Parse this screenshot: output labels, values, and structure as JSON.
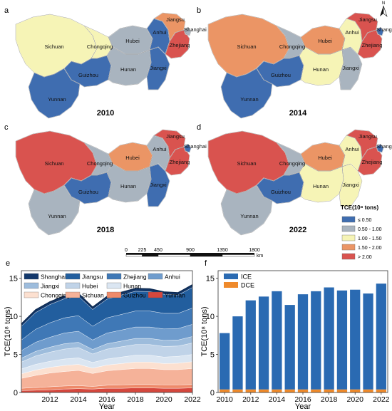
{
  "colors": {
    "lt050": "#3f6db0",
    "c050_100": "#a9b4bf",
    "c100_150": "#f6f4b6",
    "c150_200": "#eb9565",
    "gt200": "#d9534f"
  },
  "maps": [
    {
      "panel": "a",
      "year": "2010",
      "provinces": {
        "Sichuan": "c100_150",
        "Yunnan": "lt050",
        "Chongqing": "c100_150",
        "Guizhou": "lt050",
        "Hubei": "c050_100",
        "Hunan": "c050_100",
        "Jiangxi": "lt050",
        "Anhui": "lt050",
        "Jiangsu": "c150_200",
        "Zhejiang": "gt200",
        "Shanghai": "c050_100"
      }
    },
    {
      "panel": "b",
      "year": "2014",
      "provinces": {
        "Sichuan": "c150_200",
        "Yunnan": "lt050",
        "Chongqing": "c050_100",
        "Guizhou": "lt050",
        "Hubei": "c150_200",
        "Hunan": "c100_150",
        "Jiangxi": "c050_100",
        "Anhui": "c100_150",
        "Jiangsu": "gt200",
        "Zhejiang": "gt200",
        "Shanghai": "lt050"
      }
    },
    {
      "panel": "c",
      "year": "2018",
      "provinces": {
        "Sichuan": "gt200",
        "Yunnan": "c050_100",
        "Chongqing": "c050_100",
        "Guizhou": "lt050",
        "Hubei": "c150_200",
        "Hunan": "c050_100",
        "Jiangxi": "lt050",
        "Anhui": "c050_100",
        "Jiangsu": "gt200",
        "Zhejiang": "gt200",
        "Shanghai": "lt050"
      }
    },
    {
      "panel": "d",
      "year": "2022",
      "provinces": {
        "Sichuan": "gt200",
        "Yunnan": "c050_100",
        "Chongqing": "c050_100",
        "Guizhou": "lt050",
        "Hubei": "c150_200",
        "Hunan": "c100_150",
        "Jiangxi": "c100_150",
        "Anhui": "c100_150",
        "Jiangsu": "gt200",
        "Zhejiang": "gt200",
        "Shanghai": "lt050"
      }
    }
  ],
  "map_legend": {
    "title": "TCE(10⁸ tons)",
    "classes": [
      {
        "label": "≤ 0.50",
        "color_key": "lt050"
      },
      {
        "label": "0.50 - 1.00",
        "color_key": "c050_100"
      },
      {
        "label": "1.00 - 1.50",
        "color_key": "c100_150"
      },
      {
        "label": "1.50 - 2.00",
        "color_key": "c150_200"
      },
      {
        "label": "> 2.00",
        "color_key": "gt200"
      }
    ]
  },
  "north_arrow": "N",
  "scale_bar": {
    "ticks": [
      "0",
      "225",
      "450",
      "900",
      "1350",
      "1800"
    ],
    "values": [
      0,
      225,
      450,
      900,
      1350,
      1800
    ],
    "unit": "km"
  },
  "chart_data": [
    {
      "panel": "e",
      "type": "area",
      "stacked": true,
      "x": [
        2010,
        2011,
        2012,
        2013,
        2014,
        2015,
        2016,
        2017,
        2018,
        2019,
        2020,
        2021,
        2022
      ],
      "xticks": [
        2012,
        2014,
        2016,
        2018,
        2020,
        2022
      ],
      "xlim": [
        2010,
        2022
      ],
      "ylim": [
        0,
        16
      ],
      "yticks": [
        0,
        5,
        10,
        15
      ],
      "xlabel": "Year",
      "ylabel": "TCE(10⁸ tons)",
      "legend_position": "top",
      "series": [
        {
          "name": "Yunnan",
          "color": "#d5473d",
          "values": [
            0.25,
            0.3,
            0.35,
            0.45,
            0.5,
            0.45,
            0.55,
            0.55,
            0.6,
            0.6,
            0.55,
            0.55,
            0.6
          ]
        },
        {
          "name": "Guizhou",
          "color": "#ee8a6a",
          "values": [
            0.3,
            0.35,
            0.4,
            0.4,
            0.4,
            0.35,
            0.4,
            0.45,
            0.45,
            0.45,
            0.45,
            0.45,
            0.45
          ]
        },
        {
          "name": "Sichuan",
          "color": "#f5b299",
          "values": [
            1.3,
            1.6,
            1.8,
            1.9,
            2.0,
            1.7,
            1.9,
            2.0,
            2.1,
            2.1,
            2.0,
            2.0,
            2.1
          ]
        },
        {
          "name": "Chongqing",
          "color": "#fce0d0",
          "values": [
            0.6,
            0.7,
            0.75,
            0.8,
            0.8,
            0.7,
            0.75,
            0.8,
            0.85,
            0.85,
            0.8,
            0.85,
            0.9
          ]
        },
        {
          "name": "Hunan",
          "color": "#dbe6f2",
          "values": [
            0.65,
            0.75,
            0.8,
            0.85,
            0.85,
            0.75,
            0.8,
            0.85,
            0.9,
            0.9,
            0.85,
            0.9,
            0.95
          ]
        },
        {
          "name": "Hubei",
          "color": "#c0d3e8",
          "values": [
            0.9,
            1.1,
            1.2,
            1.3,
            1.35,
            1.1,
            1.3,
            1.35,
            1.4,
            1.4,
            1.4,
            1.35,
            1.5
          ]
        },
        {
          "name": "Jiangxi",
          "color": "#9dbcdc",
          "values": [
            0.5,
            0.6,
            0.65,
            0.7,
            0.7,
            0.6,
            0.7,
            0.75,
            0.8,
            0.8,
            0.8,
            0.8,
            0.85
          ]
        },
        {
          "name": "Anhui",
          "color": "#6f9ccd",
          "values": [
            1.0,
            1.2,
            1.3,
            1.4,
            1.45,
            1.25,
            1.4,
            1.45,
            1.5,
            1.5,
            1.5,
            1.5,
            1.6
          ]
        },
        {
          "name": "Zhejiang",
          "color": "#3f78b6",
          "values": [
            1.4,
            1.7,
            1.9,
            2.0,
            2.05,
            1.8,
            2.0,
            2.05,
            2.1,
            2.1,
            2.05,
            2.0,
            2.15
          ]
        },
        {
          "name": "Jiangsu",
          "color": "#225e9e",
          "values": [
            1.8,
            2.2,
            2.4,
            2.5,
            2.55,
            2.2,
            2.45,
            2.55,
            2.6,
            2.55,
            2.5,
            2.4,
            2.7
          ]
        },
        {
          "name": "Shanghai",
          "color": "#13386b",
          "values": [
            0.3,
            0.35,
            0.35,
            0.35,
            0.35,
            0.3,
            0.35,
            0.35,
            0.35,
            0.35,
            0.3,
            0.3,
            0.35
          ]
        }
      ]
    },
    {
      "panel": "f",
      "type": "bar",
      "stacked": true,
      "categories": [
        2010,
        2011,
        2012,
        2013,
        2014,
        2015,
        2016,
        2017,
        2018,
        2019,
        2020,
        2021,
        2022
      ],
      "xticks": [
        2010,
        2012,
        2014,
        2016,
        2018,
        2020,
        2022
      ],
      "ylim": [
        0,
        16
      ],
      "yticks": [
        0,
        5,
        10,
        15
      ],
      "xlabel": "Year",
      "ylabel": "TCE(10⁸ tons)",
      "legend_position": "top-left",
      "series": [
        {
          "name": "DCE",
          "color": "#ef8a2b",
          "values": [
            0.4,
            0.4,
            0.4,
            0.4,
            0.4,
            0.4,
            0.4,
            0.4,
            0.4,
            0.4,
            0.4,
            0.4,
            0.4
          ]
        },
        {
          "name": "ICE",
          "color": "#2a6ab2",
          "values": [
            7.4,
            9.6,
            11.7,
            12.2,
            12.9,
            11.1,
            12.5,
            12.9,
            13.4,
            13.0,
            13.1,
            12.6,
            13.9
          ]
        }
      ]
    }
  ]
}
